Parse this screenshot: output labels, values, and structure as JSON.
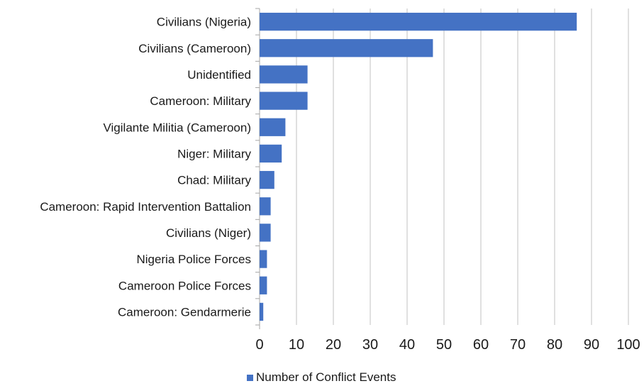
{
  "chart_data": {
    "type": "bar",
    "orientation": "horizontal",
    "categories": [
      "Civilians (Nigeria)",
      "Civilians (Cameroon)",
      "Unidentified",
      "Cameroon: Military",
      "Vigilante Militia (Cameroon)",
      "Niger: Military",
      "Chad: Military",
      "Cameroon: Rapid Intervention Battalion",
      "Civilians (Niger)",
      "Nigeria Police Forces",
      "Cameroon Police Forces",
      "Cameroon: Gendarmerie"
    ],
    "series": [
      {
        "name": "Number of Conflict Events",
        "values": [
          86,
          47,
          13,
          13,
          7,
          6,
          4,
          3,
          3,
          2,
          2,
          1
        ],
        "color": "#4472c4"
      }
    ],
    "xlim": [
      0,
      100
    ],
    "x_ticks": [
      0,
      10,
      20,
      30,
      40,
      50,
      60,
      70,
      80,
      90,
      100
    ],
    "grid": "vertical",
    "legend": "bottom"
  }
}
